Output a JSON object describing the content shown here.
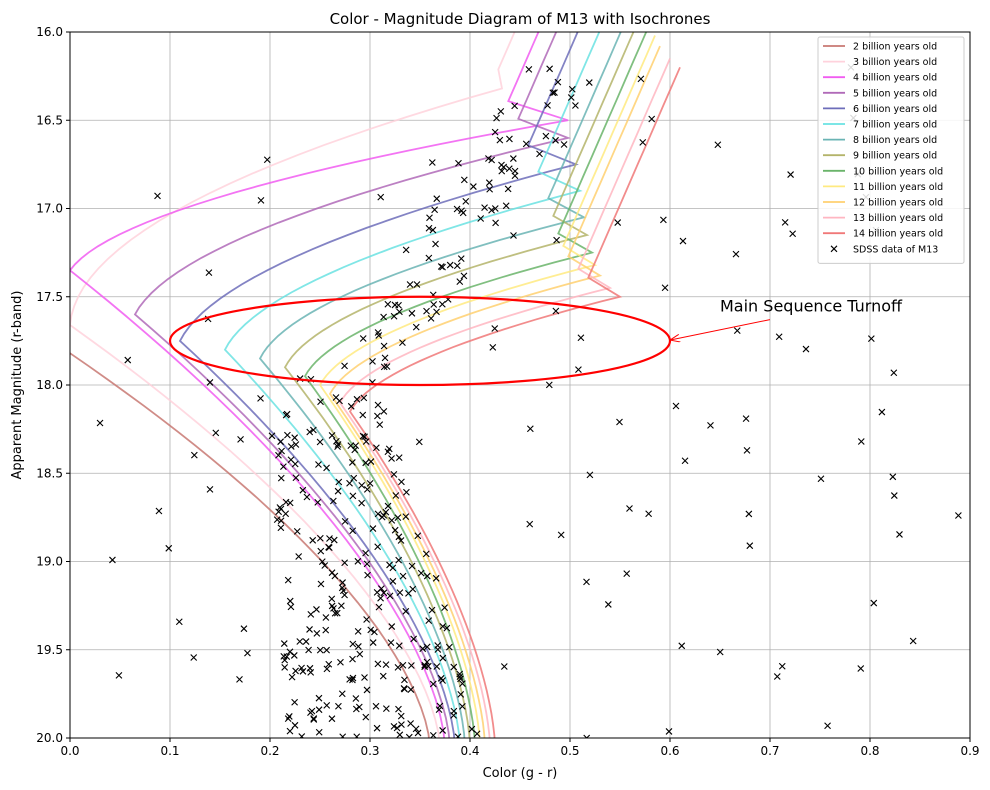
{
  "chart_data": {
    "type": "scatter",
    "title": "Color - Magnitude Diagram of M13 with Isochrones",
    "xlabel": "Color (g - r)",
    "ylabel": "Apparent Magnitude (r-band)",
    "xlim": [
      0.0,
      0.9
    ],
    "ylim": [
      20.0,
      16.0
    ],
    "y_inverted": true,
    "grid": true,
    "x_ticks": [
      "0.0",
      "0.1",
      "0.2",
      "0.3",
      "0.4",
      "0.5",
      "0.6",
      "0.7",
      "0.8",
      "0.9"
    ],
    "y_ticks": [
      "16.0",
      "16.5",
      "17.0",
      "17.5",
      "18.0",
      "18.5",
      "19.0",
      "19.5",
      "20.0"
    ],
    "legend_position": "top-right",
    "series": [
      {
        "name": "2 billion years old",
        "color": "#c87872",
        "turnoff": [
          0.0,
          17.82
        ],
        "subgiant": [
          -0.2,
          17.0
        ],
        "bot": 0.36,
        "sg_peak": -0.2
      },
      {
        "name": "3 billion years old",
        "color": "#ffd2dc",
        "turnoff": [
          0.0,
          17.66
        ],
        "subgiant": [
          0.42,
          16.32
        ],
        "bot": 0.37,
        "sg_peak": 0.03
      },
      {
        "name": "4 billion years old",
        "color": "#f15cf1",
        "turnoff": [
          0.0,
          17.35
        ],
        "subgiant": [
          0.43,
          16.5
        ],
        "bot": 0.375,
        "sg_peak": 0.17
      },
      {
        "name": "5 billion years old",
        "color": "#b06ab8",
        "turnoff": [
          0.065,
          17.6
        ],
        "subgiant": [
          0.44,
          16.6
        ],
        "bot": 0.38,
        "sg_peak": 0.21
      },
      {
        "name": "6 billion years old",
        "color": "#6d6dba",
        "turnoff": [
          0.11,
          17.75
        ],
        "subgiant": [
          0.45,
          16.75
        ],
        "bot": 0.385,
        "sg_peak": 0.25
      },
      {
        "name": "7 billion years old",
        "color": "#6ae2e2",
        "turnoff": [
          0.155,
          17.8
        ],
        "subgiant": [
          0.46,
          16.9
        ],
        "bot": 0.39,
        "sg_peak": 0.28
      },
      {
        "name": "8 billion years old",
        "color": "#6ab4b4",
        "turnoff": [
          0.19,
          17.85
        ],
        "subgiant": [
          0.47,
          17.05
        ],
        "bot": 0.395,
        "sg_peak": 0.3
      },
      {
        "name": "9 billion years old",
        "color": "#b4b46a",
        "turnoff": [
          0.215,
          17.9
        ],
        "subgiant": [
          0.475,
          17.15
        ],
        "bot": 0.4,
        "sg_peak": 0.32
      },
      {
        "name": "10 billion years old",
        "color": "#6ab46a",
        "turnoff": [
          0.235,
          17.95
        ],
        "subgiant": [
          0.48,
          17.25
        ],
        "bot": 0.405,
        "sg_peak": 0.34
      },
      {
        "name": "11 billion years old",
        "color": "#ffea80",
        "turnoff": [
          0.25,
          18.0
        ],
        "subgiant": [
          0.485,
          17.32
        ],
        "bot": 0.41,
        "sg_peak": 0.35
      },
      {
        "name": "12 billion years old",
        "color": "#ffd070",
        "turnoff": [
          0.26,
          18.05
        ],
        "subgiant": [
          0.49,
          17.38
        ],
        "bot": 0.415,
        "sg_peak": 0.36
      },
      {
        "name": "13 billion years old",
        "color": "#ffb6c1",
        "turnoff": [
          0.27,
          18.1
        ],
        "subgiant": [
          0.5,
          17.45
        ],
        "bot": 0.42,
        "sg_peak": 0.37
      },
      {
        "name": "14 billion years old",
        "color": "#f07878",
        "turnoff": [
          0.28,
          18.15
        ],
        "subgiant": [
          0.51,
          17.5
        ],
        "bot": 0.425,
        "sg_peak": 0.38
      }
    ],
    "scatter_series": {
      "name": "SDSS data of M13",
      "marker": "x",
      "color": "#000000"
    },
    "annotation": {
      "text": "Main Sequence Turnoff",
      "color": "#ff0000",
      "ellipse_center": [
        0.35,
        17.75
      ],
      "ellipse_half_width": 0.25,
      "ellipse_half_height": 0.25,
      "text_anchor": [
        0.65,
        17.55
      ],
      "arrow_target": [
        0.6,
        17.75
      ]
    }
  }
}
